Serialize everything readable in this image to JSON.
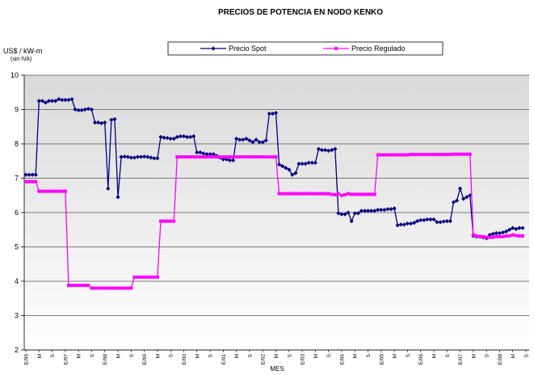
{
  "chart_data": {
    "type": "line",
    "title": "PRECIOS DE POTENCIA EN NODO KENKO",
    "y_label": "US$ / kW-m",
    "y_sublabel": "(sin IVA)",
    "x_label": "MES",
    "ylim": [
      2,
      10
    ],
    "yticks": [
      2,
      3,
      4,
      5,
      6,
      7,
      8,
      9,
      10
    ],
    "grid": true,
    "legend": "top",
    "categories": [
      "E/96",
      null,
      null,
      null,
      "M",
      null,
      null,
      null,
      "S",
      null,
      null,
      null,
      "E/97",
      null,
      null,
      null,
      "M",
      null,
      null,
      null,
      "S",
      null,
      null,
      null,
      "E/98",
      null,
      null,
      null,
      "M",
      null,
      null,
      null,
      "S",
      null,
      null,
      null,
      "E/99",
      null,
      null,
      null,
      "M",
      null,
      null,
      null,
      "S",
      null,
      null,
      null,
      "E/00",
      null,
      null,
      null,
      "M",
      null,
      null,
      null,
      "S",
      null,
      null,
      null,
      "E/01",
      null,
      null,
      null,
      "M",
      null,
      null,
      null,
      "S",
      null,
      null,
      null,
      "E/02",
      null,
      null,
      null,
      "M",
      null,
      null,
      null,
      "S",
      null,
      null,
      null,
      "E/03",
      null,
      null,
      null,
      "M",
      null,
      null,
      null,
      "S",
      null,
      null,
      null,
      "E/04",
      null,
      null,
      null,
      "M",
      null,
      null,
      null,
      "S",
      null,
      null,
      null,
      "E/05",
      null,
      null,
      null,
      "M",
      null,
      null,
      null,
      "S",
      null,
      null,
      null,
      "E/06",
      null,
      null,
      null,
      "M",
      null,
      null,
      null,
      "S",
      null,
      null,
      null,
      "E/07",
      null,
      null,
      null,
      "M",
      null,
      null,
      null,
      "S",
      null,
      null,
      null,
      "E/08",
      null,
      null,
      null,
      "M",
      null,
      null,
      null,
      "S"
    ],
    "series": [
      {
        "name": "Precio Spot",
        "color": "#000080",
        "marker": "diamond",
        "values": [
          7.1,
          7.1,
          7.1,
          7.1,
          9.25,
          9.25,
          9.2,
          9.25,
          9.25,
          9.25,
          9.3,
          9.28,
          9.28,
          9.28,
          9.3,
          9.0,
          8.98,
          8.98,
          9.0,
          9.02,
          9.0,
          8.62,
          8.62,
          8.6,
          8.62,
          6.7,
          8.7,
          8.72,
          6.45,
          7.62,
          7.63,
          7.62,
          7.6,
          7.6,
          7.62,
          7.62,
          7.63,
          7.62,
          7.6,
          7.58,
          7.58,
          8.2,
          8.18,
          8.17,
          8.15,
          8.15,
          8.2,
          8.22,
          8.22,
          8.2,
          8.2,
          8.22,
          7.75,
          7.75,
          7.72,
          7.7,
          7.7,
          7.7,
          7.65,
          7.6,
          7.55,
          7.55,
          7.52,
          7.52,
          8.15,
          8.12,
          8.12,
          8.15,
          8.1,
          8.05,
          8.12,
          8.05,
          8.05,
          8.1,
          8.88,
          8.88,
          8.9,
          7.4,
          7.35,
          7.3,
          7.25,
          7.1,
          7.15,
          7.42,
          7.42,
          7.42,
          7.45,
          7.45,
          7.45,
          7.85,
          7.82,
          7.82,
          7.8,
          7.82,
          7.85,
          5.98,
          5.95,
          5.95,
          6.0,
          5.75,
          5.98,
          5.98,
          6.05,
          6.05,
          6.05,
          6.05,
          6.05,
          6.08,
          6.08,
          6.08,
          6.1,
          6.1,
          6.12,
          5.63,
          5.65,
          5.65,
          5.68,
          5.68,
          5.7,
          5.75,
          5.78,
          5.78,
          5.8,
          5.8,
          5.8,
          5.72,
          5.72,
          5.74,
          5.75,
          5.75,
          6.3,
          6.35,
          6.7,
          6.4,
          6.45,
          6.5,
          5.32,
          5.3,
          5.3,
          5.28,
          5.25,
          5.35,
          5.38,
          5.4,
          5.4,
          5.42,
          5.45,
          5.5,
          5.55,
          5.52,
          5.55,
          5.55,
          null
        ]
      },
      {
        "name": "Precio Regulado",
        "color": "#ff00ff",
        "marker": "square",
        "values": [
          6.9,
          6.9,
          6.9,
          6.9,
          6.62,
          6.62,
          6.62,
          6.62,
          6.62,
          6.62,
          6.62,
          6.62,
          6.62,
          3.88,
          3.88,
          3.88,
          3.88,
          3.88,
          3.88,
          3.88,
          3.8,
          3.8,
          3.8,
          3.8,
          3.8,
          3.8,
          3.8,
          3.8,
          3.8,
          3.8,
          3.8,
          3.8,
          3.8,
          4.12,
          4.12,
          4.12,
          4.12,
          4.12,
          4.12,
          4.12,
          4.12,
          5.75,
          5.75,
          5.75,
          5.75,
          5.75,
          7.62,
          7.62,
          7.62,
          7.62,
          7.62,
          7.62,
          7.62,
          7.62,
          7.62,
          7.62,
          7.62,
          7.62,
          7.62,
          7.62,
          7.62,
          7.62,
          7.62,
          7.62,
          7.62,
          7.62,
          7.62,
          7.62,
          7.62,
          7.62,
          7.62,
          7.62,
          7.62,
          7.62,
          7.62,
          7.62,
          7.62,
          6.55,
          6.55,
          6.55,
          6.55,
          6.55,
          6.55,
          6.55,
          6.55,
          6.55,
          6.55,
          6.55,
          6.55,
          6.55,
          6.55,
          6.55,
          6.55,
          6.53,
          6.52,
          6.55,
          6.5,
          6.52,
          6.55,
          6.53,
          6.53,
          6.53,
          6.53,
          6.53,
          6.53,
          6.53,
          6.53,
          7.68,
          7.68,
          7.68,
          7.68,
          7.68,
          7.68,
          7.68,
          7.68,
          7.68,
          7.68,
          7.69,
          7.69,
          7.69,
          7.69,
          7.69,
          7.69,
          7.69,
          7.69,
          7.69,
          7.69,
          7.69,
          7.69,
          7.69,
          7.7,
          7.7,
          7.7,
          7.7,
          7.7,
          7.7,
          5.35,
          5.32,
          5.3,
          5.3,
          5.28,
          5.28,
          5.28,
          5.3,
          5.3,
          5.3,
          5.32,
          5.32,
          5.35,
          5.33,
          5.32,
          5.32,
          null
        ]
      }
    ]
  }
}
